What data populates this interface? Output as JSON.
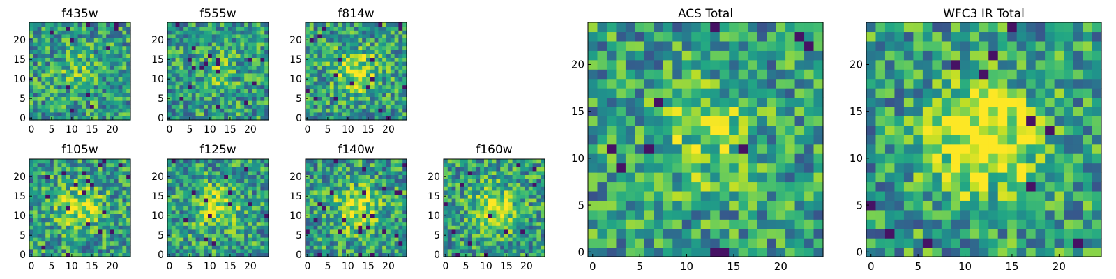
{
  "chart_data": {
    "type": "heatmap",
    "colormap": "viridis",
    "grid": false,
    "panels": [
      {
        "id": "f435w",
        "title": "f435w",
        "size": 25,
        "xticks": [
          0,
          5,
          10,
          15,
          20
        ],
        "yticks": [
          0,
          5,
          10,
          15,
          20
        ],
        "seed": 11,
        "peak": 0.15
      },
      {
        "id": "f555w",
        "title": "f555w",
        "size": 25,
        "xticks": [
          0,
          5,
          10,
          15,
          20
        ],
        "yticks": [
          0,
          5,
          10,
          15,
          20
        ],
        "seed": 23,
        "peak": 0.15
      },
      {
        "id": "f814w",
        "title": "f814w",
        "size": 25,
        "xticks": [
          0,
          5,
          10,
          15,
          20
        ],
        "yticks": [
          0,
          5,
          10,
          15,
          20
        ],
        "seed": 37,
        "peak": 0.35
      },
      {
        "id": "f105w",
        "title": "f105w",
        "size": 25,
        "xticks": [
          0,
          5,
          10,
          15,
          20
        ],
        "yticks": [
          0,
          5,
          10,
          15,
          20
        ],
        "seed": 41,
        "peak": 0.35
      },
      {
        "id": "f125w",
        "title": "f125w",
        "size": 25,
        "xticks": [
          0,
          5,
          10,
          15,
          20
        ],
        "yticks": [
          0,
          5,
          10,
          15,
          20
        ],
        "seed": 53,
        "peak": 0.35
      },
      {
        "id": "f140w",
        "title": "f140w",
        "size": 25,
        "xticks": [
          0,
          5,
          10,
          15,
          20
        ],
        "yticks": [
          0,
          5,
          10,
          15,
          20
        ],
        "seed": 67,
        "peak": 0.4
      },
      {
        "id": "f160w",
        "title": "f160w",
        "size": 25,
        "xticks": [
          0,
          5,
          10,
          15,
          20
        ],
        "yticks": [
          0,
          5,
          10,
          15,
          20
        ],
        "seed": 79,
        "peak": 0.4
      },
      {
        "id": "acs-total",
        "title": "ACS Total",
        "size": 25,
        "xticks": [
          0,
          5,
          10,
          15,
          20
        ],
        "yticks": [
          0,
          5,
          10,
          15,
          20
        ],
        "seed": 97,
        "peak": 0.25
      },
      {
        "id": "wfc3-ir-total",
        "title": "WFC3 IR Total",
        "size": 25,
        "xticks": [
          0,
          5,
          10,
          15,
          20
        ],
        "yticks": [
          0,
          5,
          10,
          15,
          20
        ],
        "seed": 113,
        "peak": 0.55
      }
    ]
  }
}
